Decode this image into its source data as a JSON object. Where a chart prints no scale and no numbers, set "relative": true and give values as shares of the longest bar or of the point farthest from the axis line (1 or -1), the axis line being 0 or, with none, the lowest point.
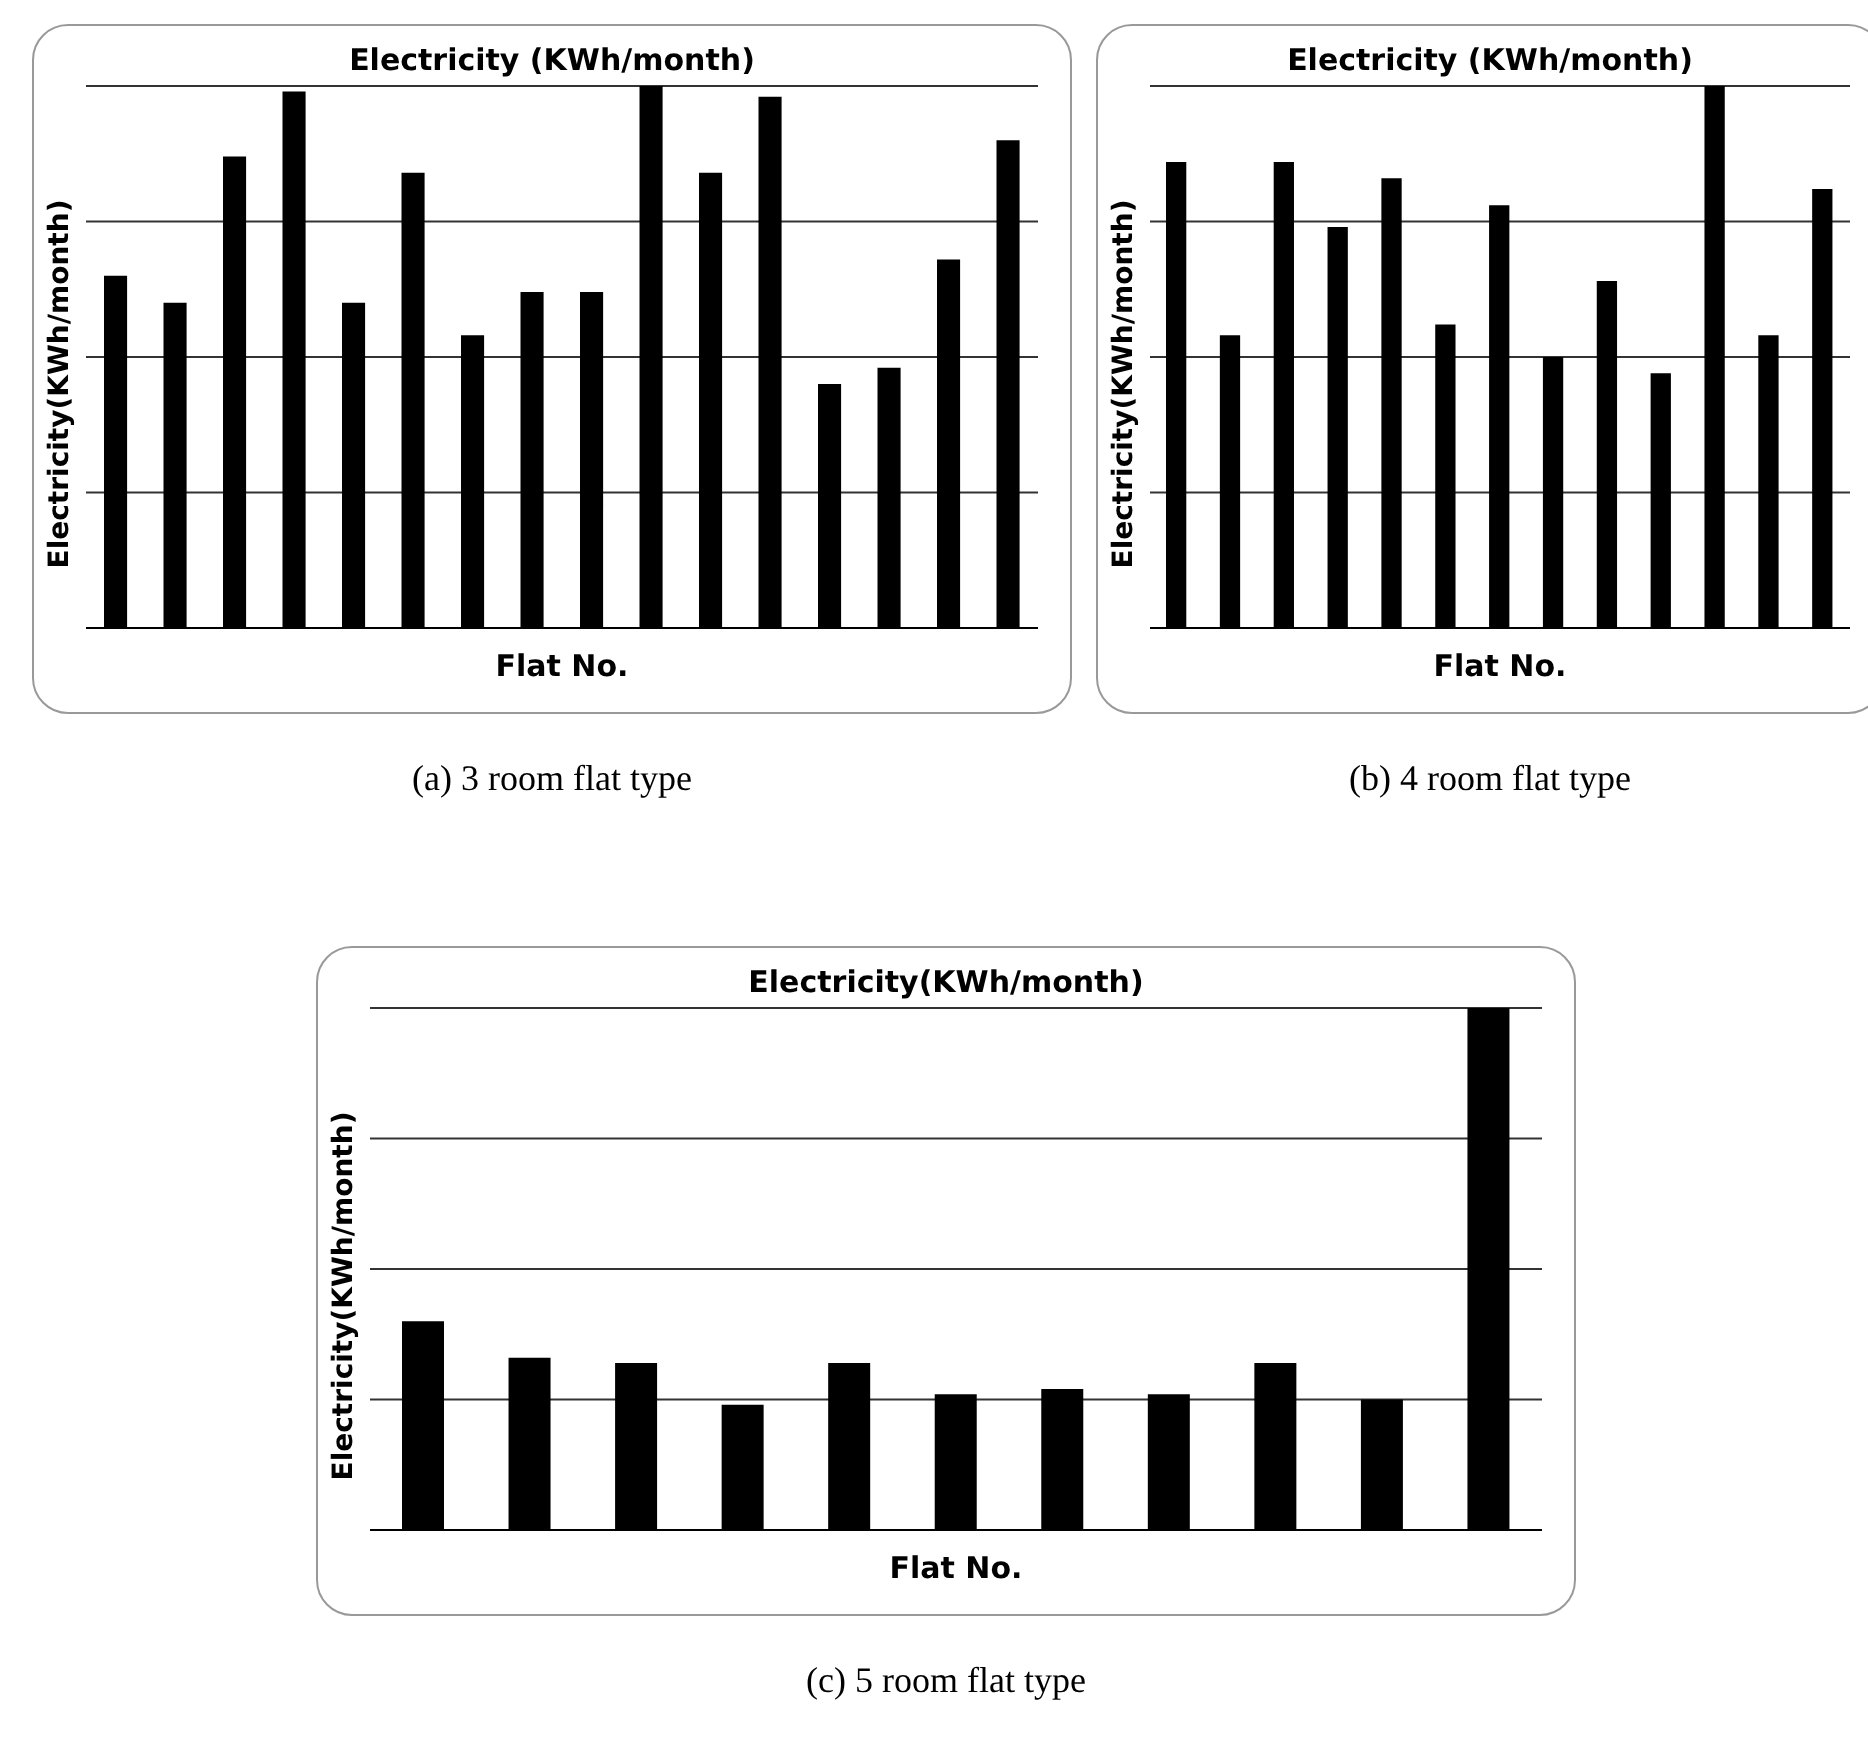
{
  "chart_data": [
    {
      "type": "bar",
      "title": "Electricity (KWh/month)",
      "xlabel": "Flat No.",
      "ylabel": "Electricity(KWh/month)",
      "annotations": [
        "(a) 3 room flat type"
      ],
      "relative": true,
      "grid": "y",
      "categories": [
        null,
        null,
        null,
        null,
        null,
        null,
        null,
        null,
        null,
        null,
        null,
        null,
        null,
        null,
        null,
        null
      ],
      "color": "#000000",
      "values": [
        0.65,
        0.6,
        0.87,
        0.99,
        0.6,
        0.84,
        0.54,
        0.62,
        0.62,
        1,
        0.84,
        0.98,
        0.45,
        0.48,
        0.68,
        0.9
      ]
    },
    {
      "type": "bar",
      "title": "Electricity (KWh/month)",
      "xlabel": "Flat No.",
      "ylabel": "Electricity(KWh/month)",
      "annotations": [
        "(b) 4 room flat type"
      ],
      "relative": true,
      "grid": "y",
      "categories": [
        null,
        null,
        null,
        null,
        null,
        null,
        null,
        null,
        null,
        null,
        null,
        null,
        null
      ],
      "color": "#000000",
      "values": [
        0.86,
        0.54,
        0.86,
        0.74,
        0.83,
        0.56,
        0.78,
        0.5,
        0.64,
        0.47,
        1,
        0.54,
        0.81
      ]
    },
    {
      "type": "bar",
      "title": "Electricity(KWh/month)",
      "xlabel": "Flat No.",
      "ylabel": "Electricity(KWh/month)",
      "annotations": [
        "(c) 5 room flat type"
      ],
      "relative": true,
      "grid": "y",
      "categories": [
        null,
        null,
        null,
        null,
        null,
        null,
        null,
        null,
        null,
        null,
        null
      ],
      "color": "#000000",
      "values": [
        0.4,
        0.33,
        0.32,
        0.24,
        0.32,
        0.26,
        0.27,
        0.26,
        0.32,
        0.25,
        1
      ]
    }
  ]
}
